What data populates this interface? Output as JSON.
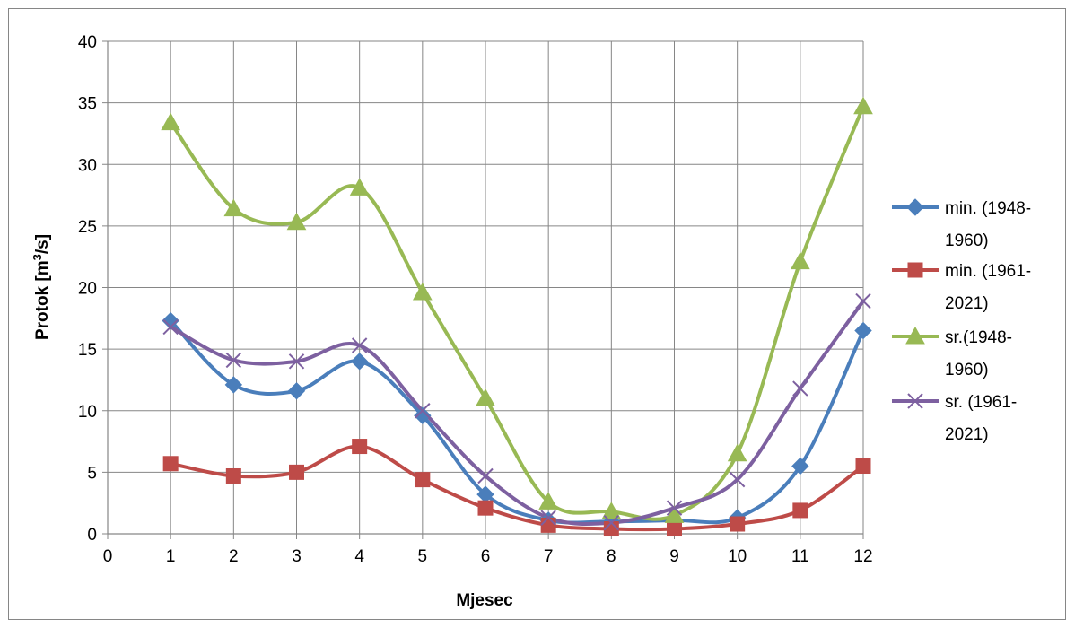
{
  "chart_data": {
    "type": "line",
    "smooth": true,
    "title": "",
    "xlabel": "Mjesec",
    "ylabel_main": "Protok [m",
    "ylabel_sup": "3",
    "ylabel_tail": "/s]",
    "xlim": [
      0,
      12
    ],
    "ylim": [
      0,
      40
    ],
    "x_ticks": [
      "0",
      "1",
      "2",
      "3",
      "4",
      "5",
      "6",
      "7",
      "8",
      "9",
      "10",
      "11",
      "12"
    ],
    "y_ticks": [
      "0",
      "5",
      "10",
      "15",
      "20",
      "25",
      "30",
      "35",
      "40"
    ],
    "grid": true,
    "legend_position": "right",
    "x": [
      1,
      2,
      3,
      4,
      5,
      6,
      7,
      8,
      9,
      10,
      11,
      12
    ],
    "series": [
      {
        "name_lines": [
          "min. (1948-",
          "1960)"
        ],
        "color": "#4a7ebb",
        "marker": "diamond",
        "values": [
          17.3,
          12.1,
          11.6,
          14.0,
          9.6,
          3.2,
          1.1,
          1.0,
          1.1,
          1.3,
          5.5,
          16.5
        ]
      },
      {
        "name_lines": [
          "min. (1961-",
          "2021)"
        ],
        "color": "#be4b48",
        "marker": "square",
        "values": [
          5.7,
          4.7,
          5.0,
          7.1,
          4.4,
          2.1,
          0.7,
          0.4,
          0.4,
          0.8,
          1.9,
          5.5
        ]
      },
      {
        "name_lines": [
          "sr.(1948-",
          "1960)"
        ],
        "color": "#98b954",
        "marker": "triangle",
        "values": [
          33.4,
          26.4,
          25.3,
          28.1,
          19.6,
          11.0,
          2.6,
          1.8,
          1.5,
          6.5,
          22.1,
          34.7
        ]
      },
      {
        "name_lines": [
          "sr. (1961-",
          "2021)"
        ],
        "color": "#7d60a0",
        "marker": "cross",
        "values": [
          16.8,
          14.1,
          14.0,
          15.3,
          10.0,
          4.7,
          1.3,
          0.9,
          2.1,
          4.4,
          11.8,
          18.9
        ]
      }
    ]
  }
}
